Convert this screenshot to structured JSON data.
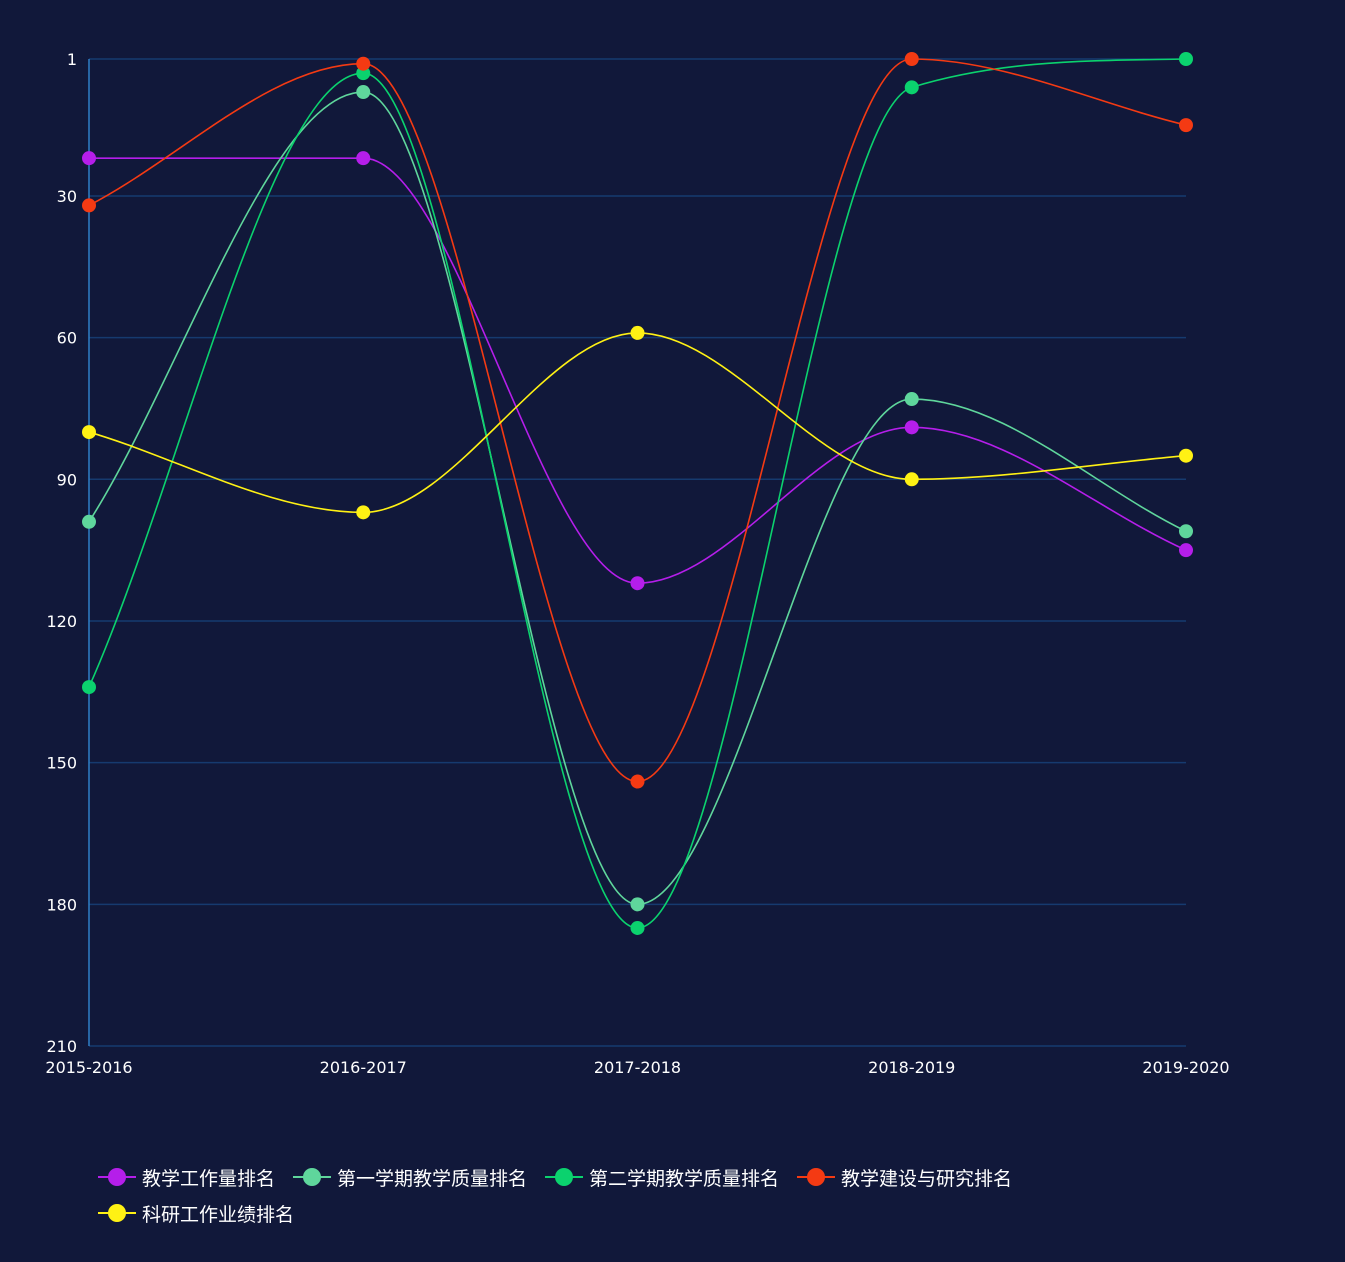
{
  "chart_data": {
    "type": "line",
    "categories": [
      "2015-2016",
      "2016-2017",
      "2017-2018",
      "2018-2019",
      "2019-2020"
    ],
    "y_ticks": [
      "1",
      "30",
      "60",
      "90",
      "120",
      "150",
      "180",
      "210"
    ],
    "ylim": [
      1,
      210
    ],
    "y_inverted": true,
    "smooth": true,
    "grid": true,
    "legend_position": "bottom-left",
    "background": "#11183a",
    "series": [
      {
        "name": "教学工作量排名",
        "color": "#b51eea",
        "values": [
          22,
          22,
          112,
          79,
          105
        ]
      },
      {
        "name": "第一学期教学质量排名",
        "color": "#5fd69c",
        "values": [
          99,
          8,
          180,
          73,
          101
        ]
      },
      {
        "name": "第二学期教学质量排名",
        "color": "#0bd26e",
        "values": [
          134,
          4,
          185,
          7,
          1
        ]
      },
      {
        "name": "教学建设与研究排名",
        "color": "#f43a13",
        "values": [
          32,
          2,
          154,
          1,
          15
        ]
      },
      {
        "name": "科研工作业绩排名",
        "color": "#fff114",
        "values": [
          80,
          97,
          59,
          90,
          85
        ]
      }
    ]
  }
}
